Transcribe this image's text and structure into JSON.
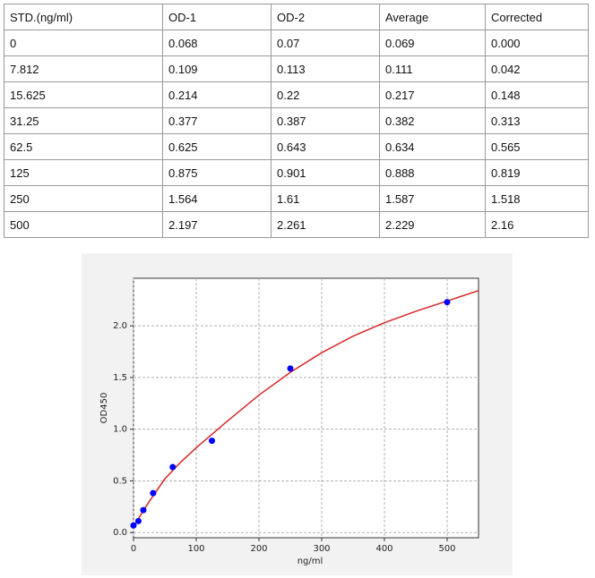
{
  "table": {
    "header": [
      "STD.(ng/ml)",
      "OD-1",
      "OD-2",
      "Average",
      "Corrected"
    ],
    "rows": [
      [
        "0",
        "0.068",
        "0.07",
        "0.069",
        "0.000"
      ],
      [
        "7.812",
        "0.109",
        "0.113",
        "0.111",
        "0.042"
      ],
      [
        "15.625",
        "0.214",
        "0.22",
        "0.217",
        "0.148"
      ],
      [
        "31.25",
        "0.377",
        "0.387",
        "0.382",
        "0.313"
      ],
      [
        "62.5",
        "0.625",
        "0.643",
        "0.634",
        "0.565"
      ],
      [
        "125",
        "0.875",
        "0.901",
        "0.888",
        "0.819"
      ],
      [
        "250",
        "1.564",
        "1.61",
        "1.587",
        "1.518"
      ],
      [
        "500",
        "2.197",
        "2.261",
        "2.229",
        "2.16"
      ]
    ]
  },
  "chart_data": {
    "type": "scatter",
    "x_label": "ng/ml",
    "y_label": "OD450",
    "grid": true,
    "xlim": [
      0,
      550
    ],
    "ylim": [
      -0.05,
      2.46
    ],
    "xticks": [
      0,
      100,
      200,
      300,
      400,
      500
    ],
    "yticks": [
      {
        "value": 0,
        "label": "0.0"
      },
      {
        "value": 0.5,
        "label": "0.5"
      },
      {
        "value": 1,
        "label": "1.0"
      },
      {
        "value": 1.5,
        "label": "1.5"
      },
      {
        "value": 2,
        "label": "2.0"
      }
    ],
    "series": [
      {
        "type": "scatter",
        "color": "#0000ff",
        "x": [
          0,
          7.812,
          15.625,
          31.25,
          62.5,
          125,
          250,
          500
        ],
        "values": [
          0.069,
          0.111,
          0.217,
          0.382,
          0.634,
          0.888,
          1.587,
          2.229
        ]
      },
      {
        "type": "line",
        "color": "#d62728",
        "x": [
          0,
          25,
          50,
          75,
          100,
          150,
          200,
          250,
          300,
          350,
          400,
          450,
          500,
          550
        ],
        "values": [
          0.06,
          0.3,
          0.52,
          0.68,
          0.82,
          1.08,
          1.33,
          1.55,
          1.74,
          1.9,
          2.03,
          2.14,
          2.24,
          2.34
        ]
      }
    ]
  }
}
